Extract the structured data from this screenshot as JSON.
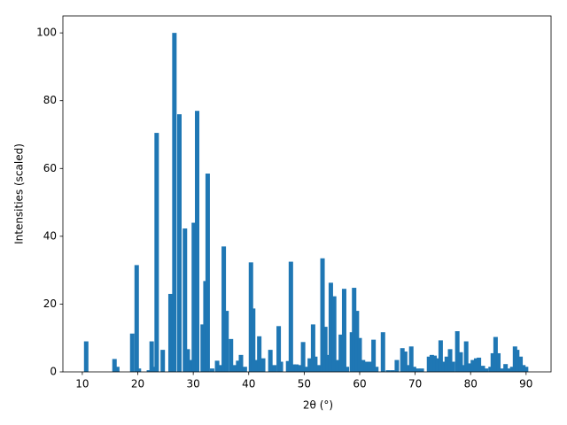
{
  "chart_data": {
    "type": "bar",
    "xlabel": "2θ (°)",
    "ylabel": "Intensities (scaled)",
    "color": "#1f77b4",
    "bar_width": 0.8,
    "xlim": [
      6.5,
      94.5
    ],
    "ylim": [
      0,
      105
    ],
    "xticks": [
      10,
      20,
      30,
      40,
      50,
      60,
      70,
      80,
      90
    ],
    "yticks": [
      0,
      20,
      40,
      60,
      80,
      100
    ],
    "x": [
      10.7,
      15.8,
      16.3,
      19.0,
      19.8,
      20.2,
      22.0,
      22.5,
      23.0,
      23.4,
      24.5,
      25.9,
      26.6,
      27.5,
      28.5,
      29.0,
      29.6,
      30.1,
      30.7,
      31.7,
      32.2,
      32.6,
      33.4,
      34.3,
      34.8,
      35.5,
      36.0,
      36.8,
      37.5,
      38.1,
      38.6,
      39.3,
      40.4,
      40.8,
      41.4,
      41.9,
      42.6,
      43.9,
      44.6,
      45.4,
      45.8,
      47.1,
      47.6,
      48.1,
      48.6,
      49.1,
      49.8,
      50.5,
      51.0,
      51.6,
      52.0,
      52.7,
      53.3,
      53.8,
      54.3,
      54.8,
      55.4,
      56.0,
      56.6,
      57.2,
      57.7,
      58.6,
      59.0,
      59.5,
      60.0,
      60.6,
      61.2,
      61.8,
      62.5,
      63.0,
      64.2,
      65.1,
      65.9,
      66.7,
      67.7,
      68.2,
      68.8,
      69.3,
      69.8,
      70.5,
      71.2,
      72.5,
      73.0,
      73.5,
      74.0,
      74.6,
      75.1,
      75.7,
      76.3,
      76.8,
      77.6,
      78.2,
      78.8,
      79.2,
      79.8,
      80.4,
      81.0,
      81.5,
      82.2,
      82.8,
      83.6,
      84.0,
      84.5,
      85.0,
      85.6,
      86.3,
      86.8,
      87.5,
      88.0,
      88.4,
      89.0,
      89.5,
      90.0
    ],
    "values": [
      9,
      3.8,
      1.5,
      11.3,
      31.5,
      1,
      0.5,
      9,
      1.5,
      70.5,
      6.5,
      23,
      100,
      76,
      42.3,
      6.7,
      3.5,
      44,
      77,
      14,
      26.8,
      58.5,
      1,
      3.3,
      2,
      37,
      18,
      9.7,
      2,
      3.3,
      5,
      1.5,
      32.3,
      18.7,
      3.5,
      10.5,
      4,
      6.5,
      2,
      13.5,
      3,
      3.2,
      32.5,
      2.2,
      2.2,
      2,
      8.8,
      1.5,
      4,
      14,
      4.5,
      2,
      33.5,
      13.3,
      5,
      26.3,
      22.3,
      3.5,
      11,
      24.5,
      1.5,
      11.7,
      24.8,
      18,
      10,
      3.5,
      3,
      3,
      9.5,
      1.5,
      11.7,
      0.5,
      0.5,
      3.5,
      7,
      6,
      2,
      7.5,
      1.5,
      1,
      1,
      4.5,
      5,
      4.8,
      4,
      9.3,
      3,
      4.5,
      6.7,
      3,
      12,
      5.8,
      2,
      9,
      2.5,
      3.5,
      4,
      4.2,
      1.8,
      1,
      1.5,
      5.5,
      10.3,
      5.5,
      1,
      2.3,
      1,
      1.5,
      7.5,
      6.5,
      4.5,
      2,
      1.5
    ]
  }
}
